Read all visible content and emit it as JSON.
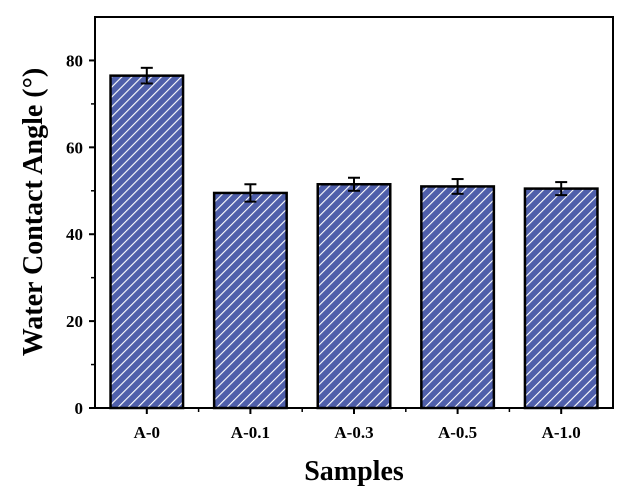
{
  "chart_data": {
    "type": "bar",
    "categories": [
      "A-0",
      "A-0.1",
      "A-0.3",
      "A-0.5",
      "A-1.0"
    ],
    "values": [
      76.5,
      49.5,
      51.5,
      51.0,
      50.5
    ],
    "errors": [
      1.8,
      2.0,
      1.5,
      1.7,
      1.5
    ],
    "xlabel": "Samples",
    "ylabel": "Water Contact Angle (°)",
    "ylim": [
      0,
      90
    ],
    "yticks": [
      0,
      20,
      40,
      60,
      80
    ],
    "grid": false,
    "legend": "none",
    "bar_color": "#4f5faa",
    "hatch_color": "#ffffff",
    "bar_fill_pattern": "diagonal-hatch"
  }
}
